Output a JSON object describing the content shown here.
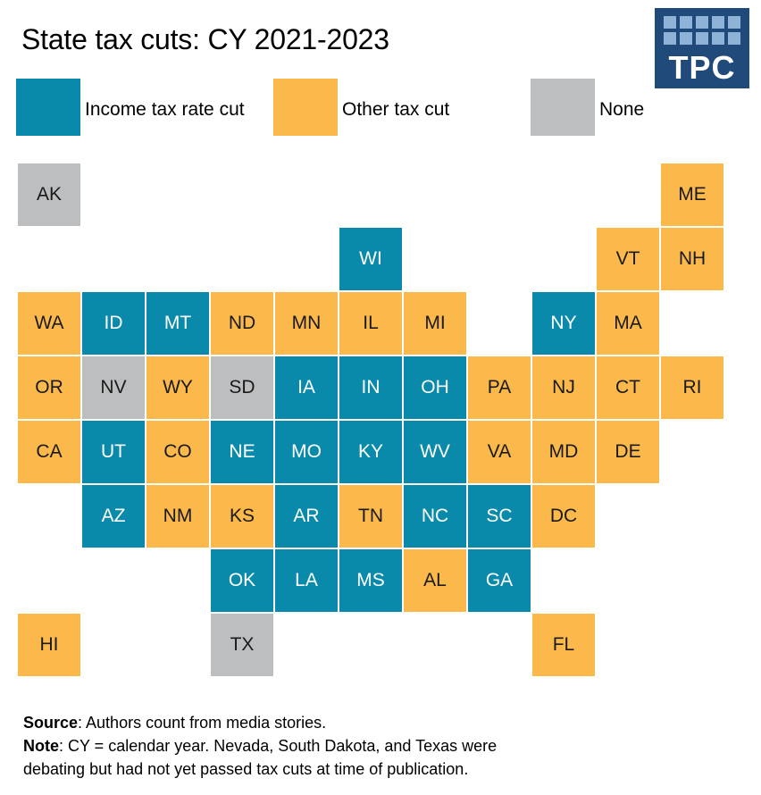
{
  "title": "State tax cuts: CY 2021-2023",
  "logo": {
    "text": "TPC",
    "background": "#1f4a7a",
    "square_color": "#8fb3d6"
  },
  "legend": [
    {
      "key": "income",
      "label": "Income tax rate cut",
      "color": "#0a8aab"
    },
    {
      "key": "other",
      "label": "Other tax cut",
      "color": "#fbb84b"
    },
    {
      "key": "none",
      "label": "None",
      "color": "#bdbebf"
    }
  ],
  "colors": {
    "income": "#0a8aab",
    "other": "#fbb84b",
    "none": "#bdbebf",
    "income_text": "#ffffff",
    "other_text": "#1a1a1a",
    "none_text": "#1a1a1a"
  },
  "states": [
    {
      "abbr": "AK",
      "row": 0,
      "col": 0,
      "category": "none"
    },
    {
      "abbr": "ME",
      "row": 0,
      "col": 10,
      "category": "other"
    },
    {
      "abbr": "WI",
      "row": 1,
      "col": 5,
      "category": "income"
    },
    {
      "abbr": "VT",
      "row": 1,
      "col": 9,
      "category": "other"
    },
    {
      "abbr": "NH",
      "row": 1,
      "col": 10,
      "category": "other"
    },
    {
      "abbr": "WA",
      "row": 2,
      "col": 0,
      "category": "other"
    },
    {
      "abbr": "ID",
      "row": 2,
      "col": 1,
      "category": "income"
    },
    {
      "abbr": "MT",
      "row": 2,
      "col": 2,
      "category": "income"
    },
    {
      "abbr": "ND",
      "row": 2,
      "col": 3,
      "category": "other"
    },
    {
      "abbr": "MN",
      "row": 2,
      "col": 4,
      "category": "other"
    },
    {
      "abbr": "IL",
      "row": 2,
      "col": 5,
      "category": "other"
    },
    {
      "abbr": "MI",
      "row": 2,
      "col": 6,
      "category": "other"
    },
    {
      "abbr": "NY",
      "row": 2,
      "col": 8,
      "category": "income"
    },
    {
      "abbr": "MA",
      "row": 2,
      "col": 9,
      "category": "other"
    },
    {
      "abbr": "OR",
      "row": 3,
      "col": 0,
      "category": "other"
    },
    {
      "abbr": "NV",
      "row": 3,
      "col": 1,
      "category": "none"
    },
    {
      "abbr": "WY",
      "row": 3,
      "col": 2,
      "category": "other"
    },
    {
      "abbr": "SD",
      "row": 3,
      "col": 3,
      "category": "none"
    },
    {
      "abbr": "IA",
      "row": 3,
      "col": 4,
      "category": "income"
    },
    {
      "abbr": "IN",
      "row": 3,
      "col": 5,
      "category": "income"
    },
    {
      "abbr": "OH",
      "row": 3,
      "col": 6,
      "category": "income"
    },
    {
      "abbr": "PA",
      "row": 3,
      "col": 7,
      "category": "other"
    },
    {
      "abbr": "NJ",
      "row": 3,
      "col": 8,
      "category": "other"
    },
    {
      "abbr": "CT",
      "row": 3,
      "col": 9,
      "category": "other"
    },
    {
      "abbr": "RI",
      "row": 3,
      "col": 10,
      "category": "other"
    },
    {
      "abbr": "CA",
      "row": 4,
      "col": 0,
      "category": "other"
    },
    {
      "abbr": "UT",
      "row": 4,
      "col": 1,
      "category": "income"
    },
    {
      "abbr": "CO",
      "row": 4,
      "col": 2,
      "category": "other"
    },
    {
      "abbr": "NE",
      "row": 4,
      "col": 3,
      "category": "income"
    },
    {
      "abbr": "MO",
      "row": 4,
      "col": 4,
      "category": "income"
    },
    {
      "abbr": "KY",
      "row": 4,
      "col": 5,
      "category": "income"
    },
    {
      "abbr": "WV",
      "row": 4,
      "col": 6,
      "category": "income"
    },
    {
      "abbr": "VA",
      "row": 4,
      "col": 7,
      "category": "other"
    },
    {
      "abbr": "MD",
      "row": 4,
      "col": 8,
      "category": "other"
    },
    {
      "abbr": "DE",
      "row": 4,
      "col": 9,
      "category": "other"
    },
    {
      "abbr": "AZ",
      "row": 5,
      "col": 1,
      "category": "income"
    },
    {
      "abbr": "NM",
      "row": 5,
      "col": 2,
      "category": "other"
    },
    {
      "abbr": "KS",
      "row": 5,
      "col": 3,
      "category": "other"
    },
    {
      "abbr": "AR",
      "row": 5,
      "col": 4,
      "category": "income"
    },
    {
      "abbr": "TN",
      "row": 5,
      "col": 5,
      "category": "other"
    },
    {
      "abbr": "NC",
      "row": 5,
      "col": 6,
      "category": "income"
    },
    {
      "abbr": "SC",
      "row": 5,
      "col": 7,
      "category": "income"
    },
    {
      "abbr": "DC",
      "row": 5,
      "col": 8,
      "category": "other"
    },
    {
      "abbr": "OK",
      "row": 6,
      "col": 3,
      "category": "income"
    },
    {
      "abbr": "LA",
      "row": 6,
      "col": 4,
      "category": "income"
    },
    {
      "abbr": "MS",
      "row": 6,
      "col": 5,
      "category": "income"
    },
    {
      "abbr": "AL",
      "row": 6,
      "col": 6,
      "category": "other"
    },
    {
      "abbr": "GA",
      "row": 6,
      "col": 7,
      "category": "income"
    },
    {
      "abbr": "HI",
      "row": 7,
      "col": 0,
      "category": "other"
    },
    {
      "abbr": "TX",
      "row": 7,
      "col": 3,
      "category": "none"
    },
    {
      "abbr": "FL",
      "row": 7,
      "col": 8,
      "category": "other"
    }
  ],
  "notes": {
    "source_label": "Source",
    "source_text": ": Authors count from media stories.",
    "note_label": "Note",
    "note_text_1": ": CY = calendar year. Nevada, South Dakota, and Texas were",
    "note_text_2": "debating but had not yet passed tax cuts at time of publication."
  }
}
